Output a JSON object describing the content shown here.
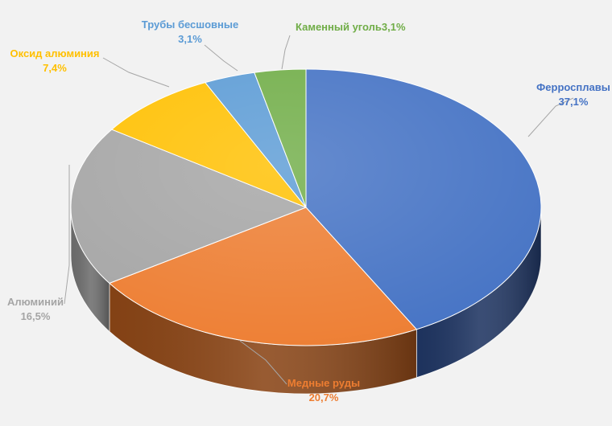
{
  "chart_data": {
    "type": "pie",
    "title": "",
    "slices": [
      {
        "name": "Ферросплавы",
        "value": 37.1,
        "value_label": "37,1%",
        "color": "#4472c4",
        "side_color": "#1f3562"
      },
      {
        "name": "Медные руды",
        "value": 20.7,
        "value_label": "20,7%",
        "color": "#ed7d31",
        "side_color": "#8a4516"
      },
      {
        "name": "Алюминий",
        "value": 16.5,
        "value_label": "16,5%",
        "color": "#a5a5a5",
        "side_color": "#6e6e6e"
      },
      {
        "name": "Оксид алюминия",
        "value": 7.4,
        "value_label": "7,4%",
        "color": "#ffc000",
        "side_color": "#a37a00"
      },
      {
        "name": "Трубы бесшовные",
        "value": 3.1,
        "value_label": "3,1%",
        "color": "#5b9bd5",
        "side_color": "#2f5f8c"
      },
      {
        "name": "Каменный уголь",
        "value": 3.1,
        "value_label": "3,1%",
        "color": "#70ad47",
        "side_color": "#436a2a"
      }
    ],
    "label_colors": {
      "Ферросплавы": "#4472c4",
      "Медные руды": "#ed7d31",
      "Алюминий": "#a5a5a5",
      "Оксид алюминия": "#ffc000",
      "Трубы бесшовные": "#5b9bd5",
      "Каменный уголь": "#70ad47"
    },
    "legend": "none",
    "style": "3d-pie"
  }
}
